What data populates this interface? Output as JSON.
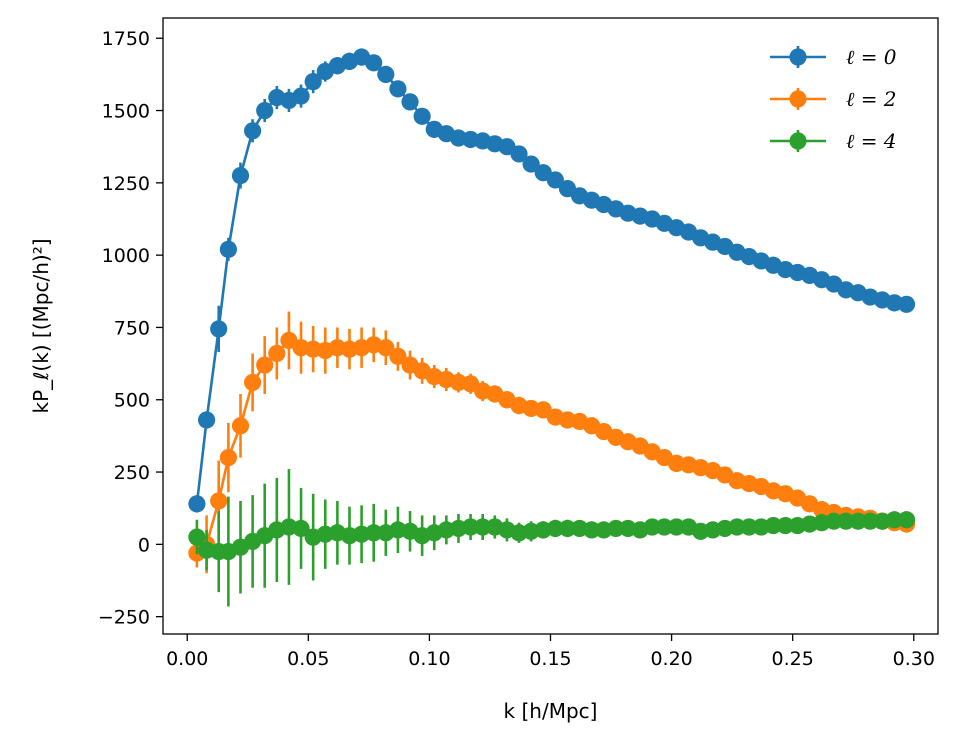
{
  "chart_data": {
    "type": "line",
    "xlabel": "k [h/Mpc]",
    "ylabel": "kP_ℓ(k) [(Mpc/h)²]",
    "xlim": [
      -0.01,
      0.31
    ],
    "ylim": [
      -310,
      1820
    ],
    "xticks": [
      "0.00",
      "0.05",
      "0.10",
      "0.15",
      "0.20",
      "0.25",
      "0.30"
    ],
    "yticks": [
      "−250",
      "0",
      "250",
      "500",
      "750",
      "1000",
      "1250",
      "1500",
      "1750"
    ],
    "grid": false,
    "legend_position": "top-right",
    "x": [
      0.004,
      0.008,
      0.013,
      0.017,
      0.022,
      0.027,
      0.032,
      0.037,
      0.042,
      0.047,
      0.052,
      0.057,
      0.062,
      0.067,
      0.072,
      0.077,
      0.082,
      0.087,
      0.092,
      0.097,
      0.102,
      0.107,
      0.112,
      0.117,
      0.122,
      0.127,
      0.132,
      0.137,
      0.142,
      0.147,
      0.152,
      0.157,
      0.162,
      0.167,
      0.172,
      0.177,
      0.182,
      0.187,
      0.192,
      0.197,
      0.202,
      0.207,
      0.212,
      0.217,
      0.222,
      0.227,
      0.232,
      0.237,
      0.242,
      0.247,
      0.252,
      0.257,
      0.262,
      0.267,
      0.272,
      0.277,
      0.282,
      0.287,
      0.292,
      0.297
    ],
    "series": [
      {
        "name": "ℓ = 0",
        "color": "#1f77b4",
        "values": [
          140,
          430,
          745,
          1020,
          1275,
          1430,
          1500,
          1545,
          1535,
          1550,
          1600,
          1635,
          1655,
          1670,
          1685,
          1665,
          1625,
          1575,
          1530,
          1480,
          1435,
          1420,
          1405,
          1400,
          1395,
          1385,
          1375,
          1350,
          1315,
          1285,
          1260,
          1230,
          1205,
          1190,
          1175,
          1160,
          1145,
          1135,
          1125,
          1110,
          1095,
          1080,
          1060,
          1045,
          1030,
          1010,
          995,
          980,
          965,
          950,
          940,
          930,
          915,
          900,
          880,
          870,
          855,
          845,
          835,
          830
        ],
        "errors": [
          30,
          30,
          80,
          40,
          45,
          40,
          40,
          40,
          40,
          40,
          40,
          35,
          30,
          30,
          30,
          25,
          25,
          25,
          20,
          20,
          20,
          15,
          15,
          15,
          15,
          15,
          15,
          15,
          15,
          15,
          12,
          12,
          12,
          12,
          12,
          12,
          10,
          10,
          10,
          10,
          10,
          10,
          10,
          10,
          10,
          10,
          10,
          10,
          10,
          10,
          10,
          10,
          10,
          10,
          10,
          10,
          10,
          10,
          10,
          10
        ]
      },
      {
        "name": "ℓ = 2",
        "color": "#ff7f0e",
        "values": [
          -30,
          0,
          150,
          300,
          410,
          560,
          620,
          660,
          705,
          680,
          675,
          670,
          680,
          675,
          680,
          690,
          680,
          650,
          620,
          600,
          580,
          570,
          560,
          555,
          530,
          520,
          500,
          480,
          470,
          465,
          440,
          430,
          425,
          410,
          390,
          370,
          355,
          340,
          320,
          300,
          280,
          275,
          265,
          255,
          240,
          220,
          210,
          200,
          185,
          175,
          160,
          140,
          120,
          110,
          100,
          95,
          90,
          80,
          75,
          70
        ],
        "errors": [
          50,
          100,
          140,
          120,
          110,
          100,
          100,
          90,
          100,
          90,
          80,
          80,
          70,
          70,
          70,
          60,
          60,
          50,
          50,
          45,
          40,
          40,
          35,
          35,
          35,
          30,
          30,
          30,
          25,
          25,
          25,
          25,
          20,
          20,
          20,
          20,
          20,
          20,
          18,
          18,
          15,
          15,
          15,
          15,
          15,
          15,
          15,
          15,
          15,
          15,
          15,
          15,
          15,
          15,
          15,
          15,
          15,
          15,
          15,
          15
        ]
      },
      {
        "name": "ℓ = 4",
        "color": "#2ca02c",
        "values": [
          25,
          -20,
          -25,
          -25,
          -10,
          10,
          30,
          50,
          60,
          55,
          25,
          35,
          40,
          30,
          35,
          40,
          40,
          50,
          45,
          30,
          40,
          50,
          55,
          60,
          60,
          60,
          50,
          40,
          45,
          50,
          55,
          55,
          55,
          50,
          50,
          55,
          55,
          50,
          60,
          60,
          60,
          60,
          45,
          50,
          55,
          60,
          60,
          60,
          65,
          65,
          65,
          70,
          75,
          80,
          80,
          80,
          80,
          80,
          85,
          85
        ],
        "errors": [
          60,
          70,
          140,
          190,
          160,
          160,
          180,
          180,
          200,
          140,
          150,
          120,
          110,
          100,
          100,
          100,
          80,
          80,
          70,
          70,
          60,
          50,
          50,
          45,
          45,
          40,
          40,
          35,
          35,
          30,
          30,
          30,
          25,
          25,
          25,
          20,
          20,
          20,
          20,
          20,
          20,
          20,
          15,
          15,
          15,
          15,
          15,
          15,
          15,
          15,
          15,
          15,
          15,
          15,
          15,
          15,
          15,
          15,
          15,
          15
        ]
      }
    ]
  }
}
